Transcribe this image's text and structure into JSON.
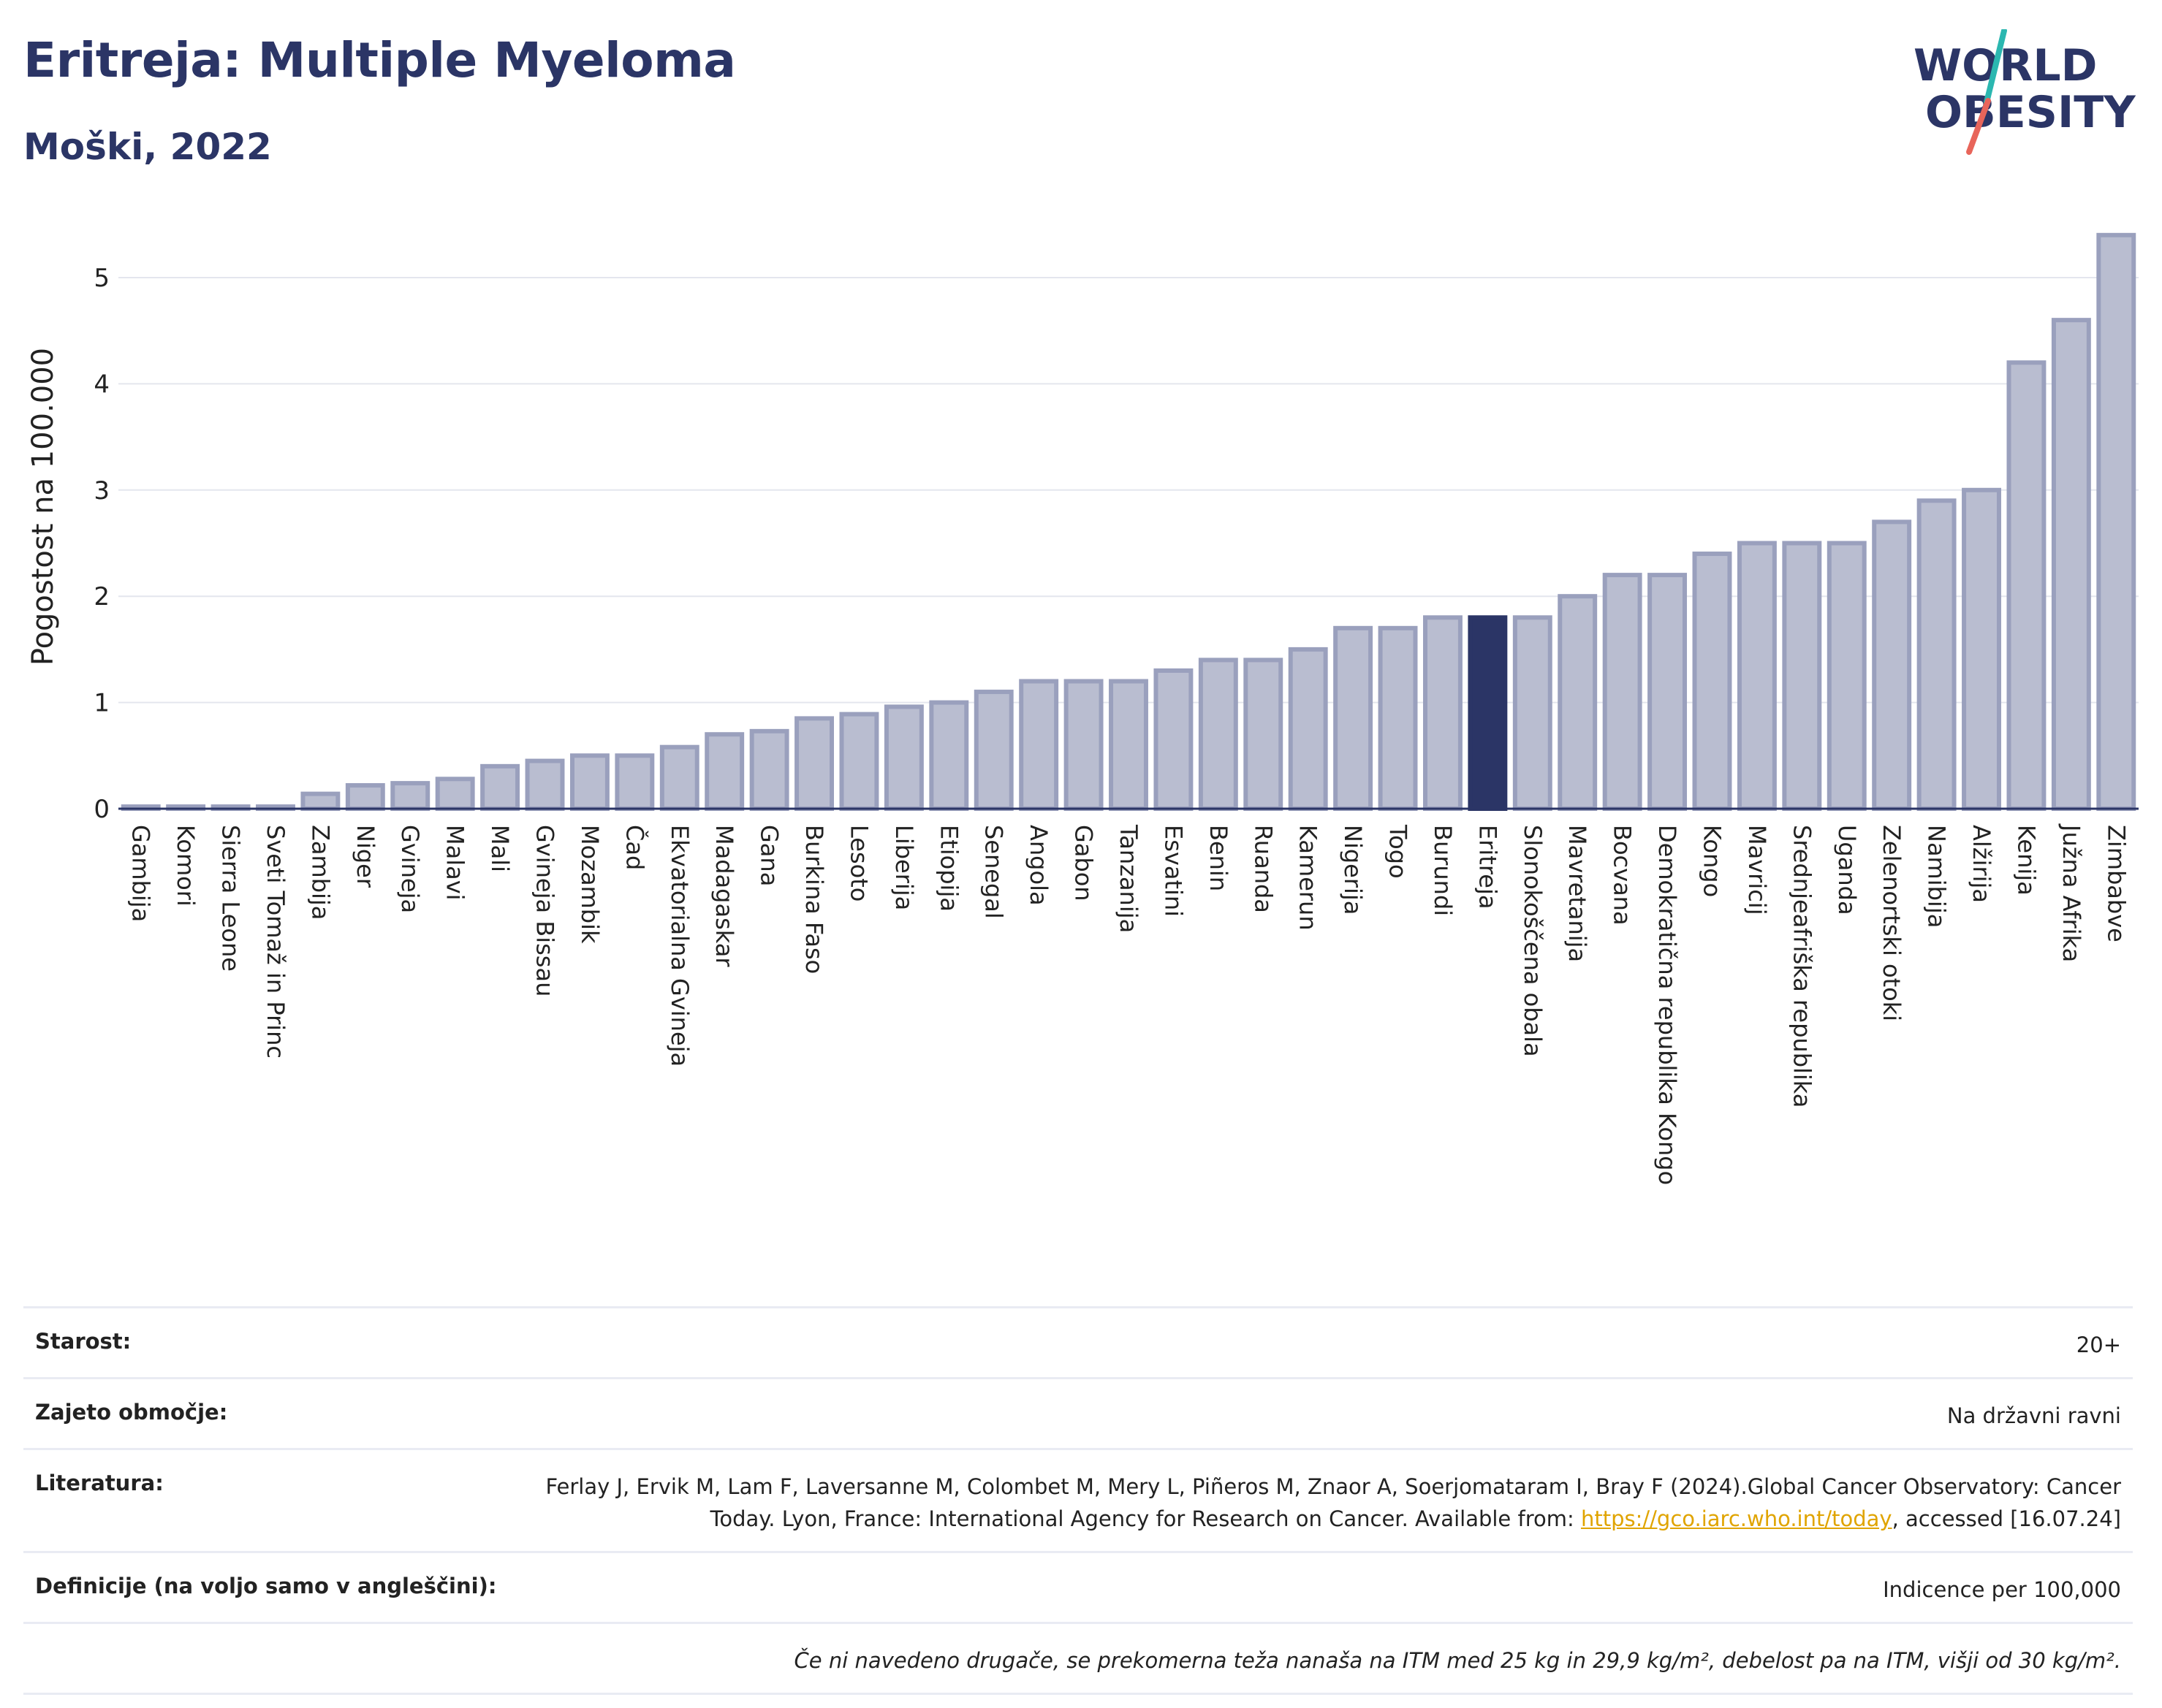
{
  "header": {
    "title": "Eritreja: Multiple Myeloma",
    "subtitle": "Moški, 2022"
  },
  "logo": {
    "line1": "WORLD",
    "line2": "OBESITY",
    "icon": "world-obesity-logo"
  },
  "colors": {
    "bar": "#b9bdd0",
    "bar_border": "#9aa0bd",
    "highlight": "#2b3566",
    "title": "#2b3566"
  },
  "chart_data": {
    "type": "bar",
    "title": "Eritreja: Multiple Myeloma",
    "subtitle": "Moški, 2022",
    "xlabel": "",
    "ylabel": "Pogostost na 100.000",
    "ylim": [
      0,
      5.55
    ],
    "yticks": [
      0,
      1,
      2,
      3,
      4,
      5
    ],
    "grid": true,
    "highlight": "Eritreja",
    "categories": [
      "Gambija",
      "Komori",
      "Sierra Leone",
      "Sveti Tomaž in Princ",
      "Zambija",
      "Niger",
      "Gvineja",
      "Malavi",
      "Mali",
      "Gvineja Bissau",
      "Mozambik",
      "Čad",
      "Ekvatorialna Gvineja",
      "Madagaskar",
      "Gana",
      "Burkina Faso",
      "Lesoto",
      "Liberija",
      "Etiopija",
      "Senegal",
      "Angola",
      "Gabon",
      "Tanzanija",
      "Esvatini",
      "Benin",
      "Ruanda",
      "Kamerun",
      "Nigerija",
      "Togo",
      "Burundi",
      "Eritreja",
      "Slonokoščena obala",
      "Mavretanija",
      "Bocvana",
      "Demokratična republika Kongo",
      "Kongo",
      "Mavricij",
      "Srednjeafriška republika",
      "Uganda",
      "Zelenortski otoki",
      "Namibija",
      "Alžirija",
      "Kenija",
      "Južna Afrika",
      "Zimbabve"
    ],
    "values": [
      0.02,
      0.02,
      0.02,
      0.02,
      0.14,
      0.22,
      0.24,
      0.28,
      0.4,
      0.45,
      0.5,
      0.5,
      0.58,
      0.7,
      0.73,
      0.85,
      0.89,
      0.96,
      1.0,
      1.1,
      1.2,
      1.2,
      1.2,
      1.3,
      1.4,
      1.4,
      1.5,
      1.7,
      1.7,
      1.8,
      1.8,
      1.8,
      2.0,
      2.2,
      2.2,
      2.4,
      2.5,
      2.5,
      2.5,
      2.7,
      2.9,
      3.0,
      4.2,
      4.6,
      5.4
    ]
  },
  "info": {
    "age_label": "Starost:",
    "age_value": "20+",
    "coverage_label": "Zajeto območje:",
    "coverage_value": "Na državni ravni",
    "literature_label": "Literatura:",
    "literature_text": "Ferlay J, Ervik M, Lam F, Laversanne M, Colombet M, Mery L, Piñeros M, Znaor A, Soerjomataram I, Bray F (2024).Global Cancer Observatory: Cancer Today. Lyon, France: International Agency for Research on Cancer. Available from: ",
    "literature_link": "https://gco.iarc.who.int/today",
    "literature_tail": ", accessed [16.07.24]",
    "definitions_label": "Definicije (na voljo samo v angleščini):",
    "definitions_value": "Indicence per 100,000",
    "note": "Če ni navedeno drugače, se prekomerna teža nanaša na ITM med 25 kg in 29,9 kg/m², debelost pa na ITM, višji od 30 kg/m²."
  }
}
